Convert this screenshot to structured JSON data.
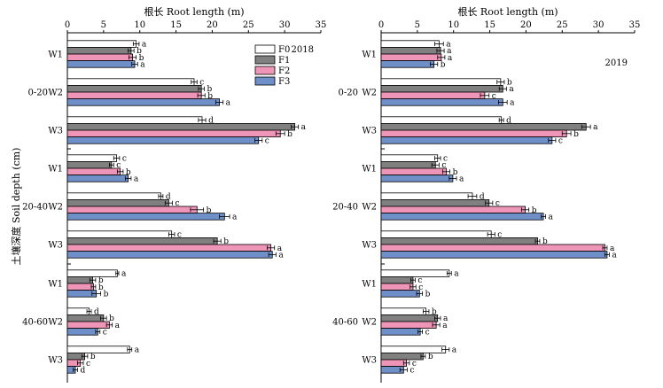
{
  "figure": {
    "ylabel": "土壤深度 Soil depth (cm)",
    "colors": {
      "F0": "#ffffff",
      "F1": "#808080",
      "F2": "#ef95b8",
      "F3": "#6f8fc9"
    }
  },
  "chart_data": [
    {
      "type": "bar",
      "orientation": "horizontal",
      "title": "2018",
      "xlabel": "根长 Root length (m)",
      "xlim": [
        0,
        35
      ],
      "xticks": [
        0,
        5,
        10,
        15,
        20,
        25,
        30,
        35
      ],
      "legend": {
        "placement": "top-right",
        "entries": [
          "F0",
          "F1",
          "F2",
          "F3"
        ]
      },
      "groups": [
        {
          "depth": "0-20",
          "categories": [
            {
              "label": "W1",
              "values": [
                9.5,
                8.8,
                9.0,
                9.3
              ],
              "errors": [
                0.4,
                0.4,
                0.5,
                0.4
              ],
              "letters": [
                "a",
                "b",
                "b",
                "a"
              ]
            },
            {
              "label": "W2",
              "values": [
                17.5,
                18.5,
                18.5,
                21.0
              ],
              "errors": [
                0.4,
                0.4,
                0.5,
                0.5
              ],
              "letters": [
                "c",
                "b",
                "b",
                "a"
              ]
            },
            {
              "label": "W3",
              "values": [
                18.6,
                31.4,
                29.4,
                26.4
              ],
              "errors": [
                0.5,
                0.5,
                0.6,
                0.5
              ],
              "letters": [
                "d",
                "a",
                "b",
                "c"
              ]
            }
          ]
        },
        {
          "depth": "20-40",
          "categories": [
            {
              "label": "W1",
              "values": [
                6.8,
                6.1,
                7.3,
                8.4
              ],
              "errors": [
                0.4,
                0.3,
                0.4,
                0.4
              ],
              "letters": [
                "c",
                "c",
                "b",
                "a"
              ]
            },
            {
              "label": "W2",
              "values": [
                12.9,
                14.0,
                17.9,
                21.7
              ],
              "errors": [
                0.3,
                0.5,
                0.9,
                0.7
              ],
              "letters": [
                "d",
                "c",
                "b",
                "a"
              ]
            },
            {
              "label": "W3",
              "values": [
                14.4,
                20.7,
                28.1,
                28.3
              ],
              "errors": [
                0.4,
                0.5,
                0.5,
                0.5
              ],
              "letters": [
                "c",
                "b",
                "a",
                "a"
              ]
            }
          ]
        },
        {
          "depth": "40-60",
          "categories": [
            {
              "label": "W1",
              "values": [
                6.9,
                3.5,
                3.6,
                4.0
              ],
              "errors": [
                0.2,
                0.4,
                0.3,
                0.6
              ],
              "letters": [
                "a",
                "b",
                "b",
                "b"
              ]
            },
            {
              "label": "W2",
              "values": [
                3.0,
                5.0,
                5.8,
                4.2
              ],
              "errors": [
                0.3,
                0.4,
                0.4,
                0.3
              ],
              "letters": [
                "d",
                "b",
                "a",
                "c"
              ]
            },
            {
              "label": "W3",
              "values": [
                8.6,
                2.4,
                1.8,
                1.1
              ],
              "errors": [
                0.3,
                0.4,
                0.4,
                0.3
              ],
              "letters": [
                "a",
                "b",
                "c",
                "d"
              ]
            }
          ]
        }
      ]
    },
    {
      "type": "bar",
      "orientation": "horizontal",
      "title": "2019",
      "xlabel": "根长 Root length (m)",
      "xlim": [
        0,
        35
      ],
      "xticks": [
        0,
        5,
        10,
        15,
        20,
        25,
        30,
        35
      ],
      "groups": [
        {
          "depth": "0-20",
          "categories": [
            {
              "label": "W1",
              "values": [
                8.0,
                8.2,
                8.3,
                7.3
              ],
              "errors": [
                0.6,
                0.5,
                0.5,
                0.5
              ],
              "letters": [
                "a",
                "a",
                "a",
                "b"
              ]
            },
            {
              "label": "W2",
              "values": [
                16.5,
                16.8,
                14.3,
                16.8
              ],
              "errors": [
                0.5,
                0.5,
                0.6,
                0.6
              ],
              "letters": [
                "b",
                "a",
                "c",
                "a"
              ]
            },
            {
              "label": "W3",
              "values": [
                16.6,
                28.3,
                25.6,
                23.6
              ],
              "errors": [
                0.3,
                0.6,
                0.6,
                0.5
              ],
              "letters": [
                "d",
                "a",
                "b",
                "c"
              ]
            }
          ]
        },
        {
          "depth": "20-40",
          "categories": [
            {
              "label": "W1",
              "values": [
                7.8,
                7.5,
                9.0,
                9.9
              ],
              "errors": [
                0.4,
                0.5,
                0.5,
                0.5
              ],
              "letters": [
                "c",
                "c",
                "b",
                "a"
              ]
            },
            {
              "label": "W2",
              "values": [
                12.6,
                14.9,
                19.9,
                22.4
              ],
              "errors": [
                0.6,
                0.5,
                0.5,
                0.3
              ],
              "letters": [
                "d",
                "c",
                "b",
                "a"
              ]
            },
            {
              "label": "W3",
              "values": [
                15.2,
                21.6,
                30.9,
                31.2
              ],
              "errors": [
                0.5,
                0.3,
                0.3,
                0.3
              ],
              "letters": [
                "c",
                "b",
                "a",
                "a"
              ]
            }
          ]
        },
        {
          "depth": "40-60",
          "categories": [
            {
              "label": "W1",
              "values": [
                9.4,
                4.4,
                4.4,
                5.3
              ],
              "errors": [
                0.3,
                0.3,
                0.4,
                0.4
              ],
              "letters": [
                "a",
                "c",
                "c",
                "b"
              ]
            },
            {
              "label": "W2",
              "values": [
                6.2,
                7.8,
                7.6,
                5.4
              ],
              "errors": [
                0.4,
                0.4,
                0.5,
                0.3
              ],
              "letters": [
                "b",
                "a",
                "a",
                "c"
              ]
            },
            {
              "label": "W3",
              "values": [
                8.9,
                5.8,
                3.5,
                3.1
              ],
              "errors": [
                0.5,
                0.3,
                0.4,
                0.5
              ],
              "letters": [
                "a",
                "b",
                "c",
                "c"
              ]
            }
          ]
        }
      ]
    }
  ]
}
